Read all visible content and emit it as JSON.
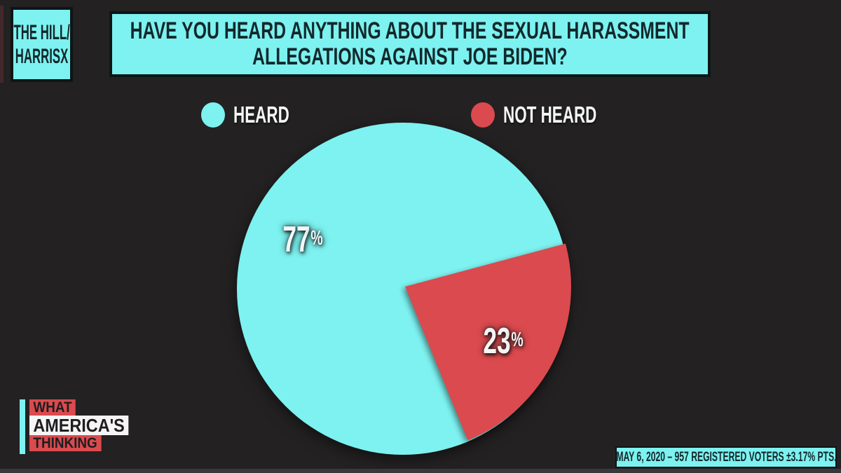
{
  "theme": {
    "cyan": "#7DF2F0",
    "red": "#DB4A4E",
    "background": "#232122",
    "dark_text": "#13282B",
    "box_border": "#0D1617",
    "white_text": "#F4F6F6",
    "bottom_strip": "#3A383A"
  },
  "brand": {
    "line1": "THE HILL/",
    "line2": "HARRISX"
  },
  "watermark": {
    "line1": "WHAT",
    "line2": "AMERICA'S",
    "line3": "THINKING"
  },
  "chart_data": {
    "type": "pie",
    "title": "HAVE YOU HEARD ANYTHING ABOUT THE SEXUAL HARASSMENT ALLEGATIONS AGAINST JOE BIDEN?",
    "title_lines": [
      "HAVE YOU HEARD ANYTHING ABOUT THE SEXUAL HARASSMENT",
      "ALLEGATIONS AGAINST JOE BIDEN?"
    ],
    "categories": [
      "HEARD",
      "NOT HEARD"
    ],
    "values": [
      77,
      23
    ],
    "unit": "%",
    "colors": [
      "#7DF2F0",
      "#DB4A4E"
    ],
    "legend_position": "top",
    "start_angle_clockwise_from_top_deg": 75,
    "source": "MAY 6, 2020 – 957 REGISTERED VOTERS ±3.17% PTS."
  }
}
